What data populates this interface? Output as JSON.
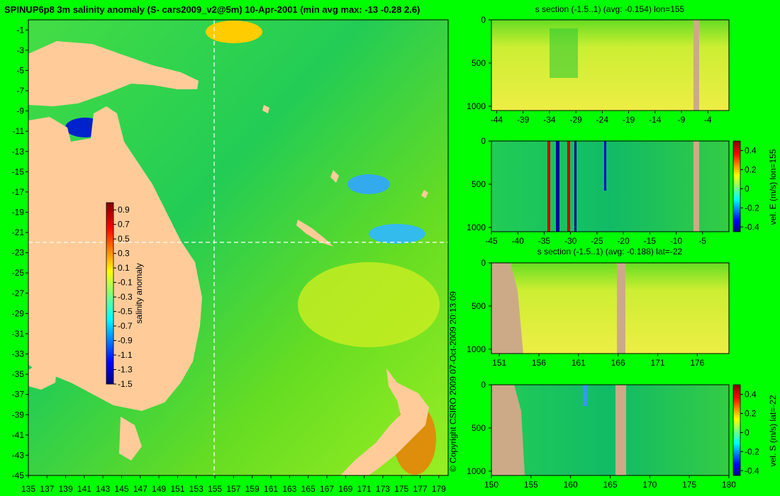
{
  "page": {
    "title": "SPINUP6p8 3m salinity anomaly (S- cars2009_v2@5m) 10-Apr-2001 (min avg max: -13 -0.28 2.6)",
    "copyright": "© Copyright CSIRO 2009   07-Oct-2009 20:13:09"
  },
  "colors": {
    "background": "#00ff00",
    "land": "#ffcc99",
    "section_land": "#ccaa88",
    "frame": "#000000",
    "section_line": "#ffffff"
  },
  "chart_data": [
    {
      "type": "heatmap",
      "name": "map",
      "xlim": [
        135,
        180
      ],
      "ylim": [
        -45,
        0
      ],
      "xticks": [
        135,
        137,
        139,
        141,
        143,
        145,
        147,
        149,
        151,
        153,
        155,
        157,
        159,
        161,
        163,
        165,
        167,
        169,
        171,
        173,
        175,
        177,
        179
      ],
      "yticks": [
        -1,
        -3,
        -5,
        -7,
        -9,
        -11,
        -13,
        -15,
        -17,
        -19,
        -21,
        -23,
        -25,
        -27,
        -29,
        -31,
        -33,
        -35,
        -37,
        -39,
        -41,
        -43,
        -45
      ],
      "section_lon": 155,
      "section_lat": -22,
      "colorbar": {
        "label": "salinity anomaly",
        "ticks": [
          "0.9",
          "0.7",
          "0.5",
          "0.3",
          "0.1",
          "-0.1",
          "-0.3",
          "-0.5",
          "-0.7",
          "-0.9",
          "-1.1",
          "-1.3",
          "-1.5"
        ],
        "range": [
          -1.5,
          1.0
        ]
      }
    },
    {
      "type": "heatmap",
      "name": "s-section-lon",
      "title": "s section (-1.5..1) (avg: -0.154) lon=155",
      "xticks": [
        "-44",
        "-39",
        "-34",
        "-29",
        "-24",
        "-19",
        "-14",
        "-9",
        "-4"
      ],
      "yticks": [
        "0",
        "500",
        "1000"
      ],
      "xlim": [
        -45,
        0
      ],
      "ylim": [
        0,
        1050
      ]
    },
    {
      "type": "heatmap",
      "name": "vel-e-section",
      "xticks": [
        "-45",
        "-40",
        "-35",
        "-30",
        "-25",
        "-20",
        "-15",
        "-10",
        "-5"
      ],
      "yticks": [
        "0",
        "500",
        "1000"
      ],
      "xlim": [
        -45,
        0
      ],
      "ylim": [
        0,
        1050
      ],
      "colorbar": {
        "label": "vel. E (m/s) lon=155",
        "ticks": [
          "0.4",
          "0.2",
          "0",
          "-0.2",
          "-0.4"
        ],
        "range": [
          -0.45,
          0.5
        ]
      }
    },
    {
      "type": "heatmap",
      "name": "s-section-lat",
      "title": "s section (-1.5..1) (avg: -0.188) lat=-22",
      "xticks": [
        "151",
        "156",
        "161",
        "166",
        "171",
        "176"
      ],
      "yticks": [
        "0",
        "500",
        "1000"
      ],
      "xlim": [
        150,
        180
      ],
      "ylim": [
        0,
        1050
      ]
    },
    {
      "type": "heatmap",
      "name": "vel-s-section",
      "xticks": [
        "150",
        "155",
        "160",
        "165",
        "170",
        "175",
        "180"
      ],
      "yticks": [
        "0",
        "500",
        "1000"
      ],
      "xlim": [
        150,
        180
      ],
      "ylim": [
        0,
        1050
      ],
      "colorbar": {
        "label": "vel. S (m/s) lat=-22",
        "ticks": [
          "0.4",
          "0.2",
          "0",
          "-0.2",
          "-0.4"
        ],
        "range": [
          -0.45,
          0.5
        ]
      }
    }
  ]
}
